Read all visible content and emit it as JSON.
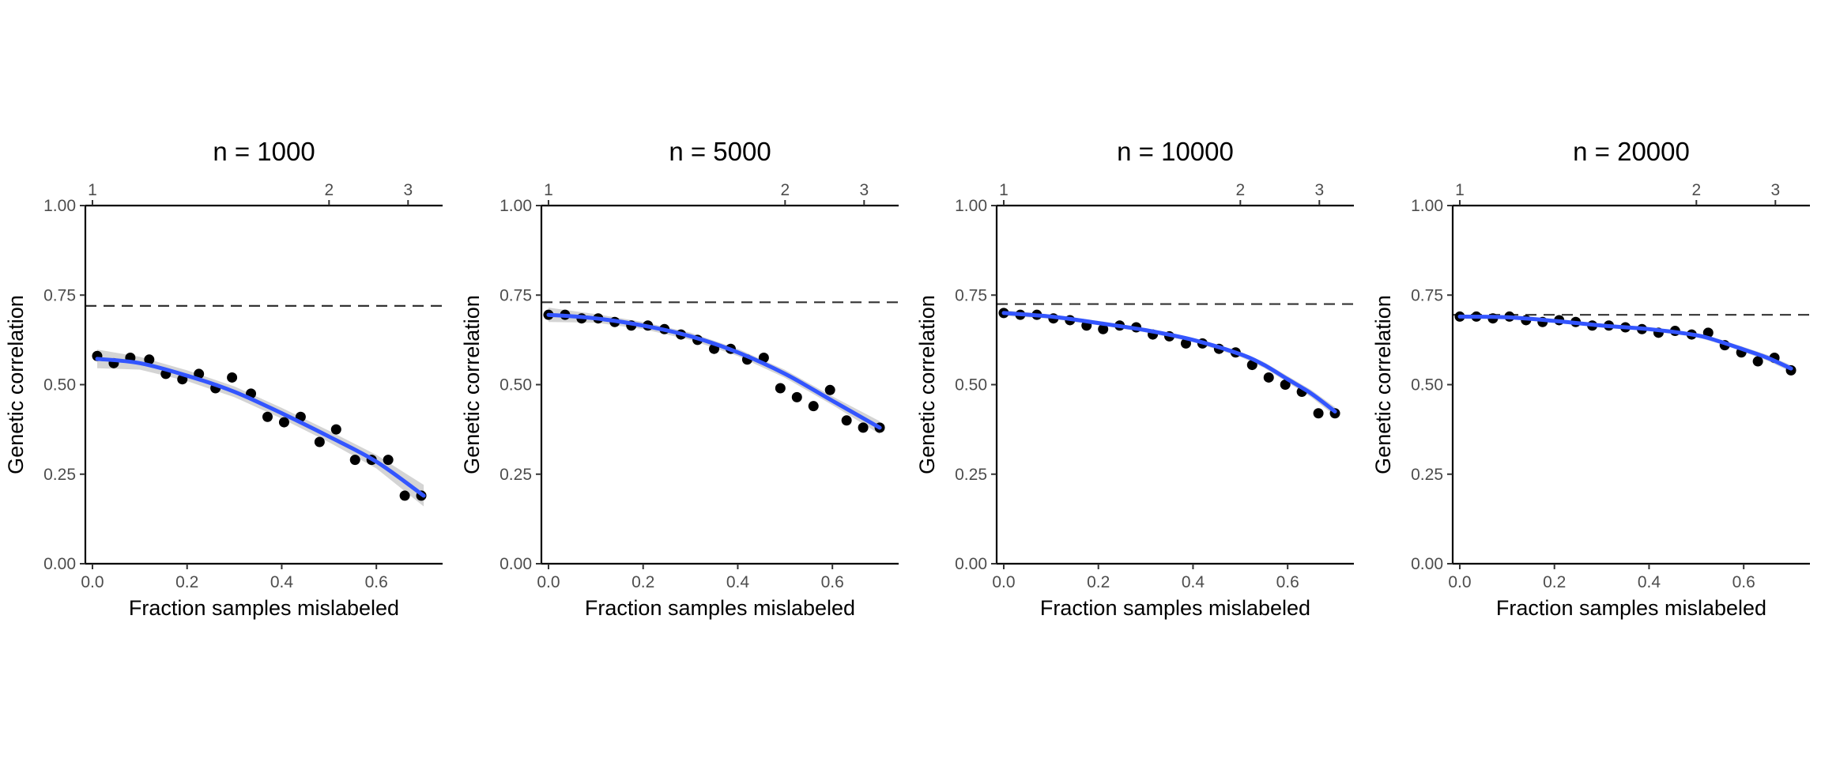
{
  "figure": {
    "colors": {
      "point": "#000000",
      "fit_line": "#3355ff",
      "confidence_band": "#cccccc",
      "reference_line": "#333333"
    }
  },
  "chart_data": [
    {
      "type": "scatter",
      "title": "n = 1000",
      "xlabel": "Fraction samples mislabeled",
      "ylabel": "Genetic correlation",
      "xlim": [
        -0.015,
        0.74
      ],
      "ylim": [
        0,
        1
      ],
      "x_ticks": [
        0.0,
        0.2,
        0.4,
        0.6
      ],
      "x_tick_labels": [
        "0.0",
        "0.2",
        "0.4",
        "0.6"
      ],
      "y_ticks": [
        0,
        0.25,
        0.5,
        0.75,
        1
      ],
      "y_tick_labels": [
        "0.00",
        "0.25",
        "0.50",
        "0.75",
        "1.00"
      ],
      "top_axis_ticks": [
        0.0,
        0.5,
        0.667
      ],
      "top_axis_tick_labels": [
        "1",
        "2",
        "3"
      ],
      "reference_y": 0.72,
      "points": {
        "x": [
          0.01,
          0.045,
          0.08,
          0.12,
          0.155,
          0.19,
          0.225,
          0.26,
          0.295,
          0.335,
          0.37,
          0.405,
          0.44,
          0.48,
          0.515,
          0.555,
          0.59,
          0.625,
          0.66,
          0.695
        ],
        "y": [
          0.58,
          0.56,
          0.575,
          0.57,
          0.53,
          0.515,
          0.53,
          0.49,
          0.52,
          0.475,
          0.41,
          0.395,
          0.41,
          0.34,
          0.375,
          0.29,
          0.29,
          0.29,
          0.19,
          0.19
        ]
      },
      "fit": {
        "x": [
          0.01,
          0.1,
          0.2,
          0.3,
          0.4,
          0.5,
          0.6,
          0.7
        ],
        "y": [
          0.572,
          0.56,
          0.525,
          0.48,
          0.42,
          0.355,
          0.285,
          0.19
        ],
        "ci_halfwidth": [
          0.026,
          0.018,
          0.015,
          0.015,
          0.015,
          0.016,
          0.019,
          0.03
        ]
      }
    },
    {
      "type": "scatter",
      "title": "n = 5000",
      "xlabel": "Fraction samples mislabeled",
      "ylabel": "Genetic correlation",
      "xlim": [
        -0.015,
        0.74
      ],
      "ylim": [
        0,
        1
      ],
      "x_ticks": [
        0.0,
        0.2,
        0.4,
        0.6
      ],
      "x_tick_labels": [
        "0.0",
        "0.2",
        "0.4",
        "0.6"
      ],
      "y_ticks": [
        0,
        0.25,
        0.5,
        0.75,
        1
      ],
      "y_tick_labels": [
        "0.00",
        "0.25",
        "0.50",
        "0.75",
        "1.00"
      ],
      "top_axis_ticks": [
        0.0,
        0.5,
        0.667
      ],
      "top_axis_tick_labels": [
        "1",
        "2",
        "3"
      ],
      "reference_y": 0.73,
      "points": {
        "x": [
          0.0,
          0.035,
          0.07,
          0.105,
          0.14,
          0.175,
          0.21,
          0.245,
          0.28,
          0.315,
          0.35,
          0.385,
          0.42,
          0.455,
          0.49,
          0.525,
          0.56,
          0.595,
          0.63,
          0.665,
          0.7
        ],
        "y": [
          0.695,
          0.695,
          0.685,
          0.685,
          0.675,
          0.665,
          0.665,
          0.655,
          0.64,
          0.625,
          0.6,
          0.6,
          0.57,
          0.575,
          0.49,
          0.465,
          0.44,
          0.485,
          0.4,
          0.38,
          0.38
        ]
      },
      "fit": {
        "x": [
          0.0,
          0.1,
          0.2,
          0.3,
          0.4,
          0.5,
          0.6,
          0.7
        ],
        "y": [
          0.695,
          0.685,
          0.665,
          0.635,
          0.59,
          0.53,
          0.455,
          0.38
        ],
        "ci_halfwidth": [
          0.02,
          0.012,
          0.01,
          0.01,
          0.01,
          0.011,
          0.012,
          0.018
        ]
      }
    },
    {
      "type": "scatter",
      "title": "n = 10000",
      "xlabel": "Fraction samples mislabeled",
      "ylabel": "Genetic correlation",
      "xlim": [
        -0.015,
        0.74
      ],
      "ylim": [
        0,
        1
      ],
      "x_ticks": [
        0.0,
        0.2,
        0.4,
        0.6
      ],
      "x_tick_labels": [
        "0.0",
        "0.2",
        "0.4",
        "0.6"
      ],
      "y_ticks": [
        0,
        0.25,
        0.5,
        0.75,
        1
      ],
      "y_tick_labels": [
        "0.00",
        "0.25",
        "0.50",
        "0.75",
        "1.00"
      ],
      "top_axis_ticks": [
        0.0,
        0.5,
        0.667
      ],
      "top_axis_tick_labels": [
        "1",
        "2",
        "3"
      ],
      "reference_y": 0.725,
      "points": {
        "x": [
          0.0,
          0.035,
          0.07,
          0.105,
          0.14,
          0.175,
          0.21,
          0.245,
          0.28,
          0.315,
          0.35,
          0.385,
          0.42,
          0.455,
          0.49,
          0.525,
          0.56,
          0.595,
          0.63,
          0.665,
          0.7
        ],
        "y": [
          0.7,
          0.695,
          0.695,
          0.685,
          0.68,
          0.665,
          0.655,
          0.665,
          0.66,
          0.64,
          0.635,
          0.615,
          0.615,
          0.6,
          0.59,
          0.555,
          0.52,
          0.5,
          0.48,
          0.42,
          0.42
        ]
      },
      "fit": {
        "x": [
          0.0,
          0.1,
          0.2,
          0.3,
          0.4,
          0.5,
          0.55,
          0.6,
          0.65,
          0.7
        ],
        "y": [
          0.7,
          0.69,
          0.672,
          0.652,
          0.625,
          0.585,
          0.555,
          0.515,
          0.475,
          0.425
        ],
        "ci_halfwidth": [
          0.008,
          0.006,
          0.006,
          0.006,
          0.006,
          0.007,
          0.008,
          0.009,
          0.01,
          0.012
        ]
      }
    },
    {
      "type": "scatter",
      "title": "n = 20000",
      "xlabel": "Fraction samples mislabeled",
      "ylabel": "Genetic correlation",
      "xlim": [
        -0.015,
        0.74
      ],
      "ylim": [
        0,
        1
      ],
      "x_ticks": [
        0.0,
        0.2,
        0.4,
        0.6
      ],
      "x_tick_labels": [
        "0.0",
        "0.2",
        "0.4",
        "0.6"
      ],
      "y_ticks": [
        0,
        0.25,
        0.5,
        0.75,
        1
      ],
      "y_tick_labels": [
        "0.00",
        "0.25",
        "0.50",
        "0.75",
        "1.00"
      ],
      "top_axis_ticks": [
        0.0,
        0.5,
        0.667
      ],
      "top_axis_tick_labels": [
        "1",
        "2",
        "3"
      ],
      "reference_y": 0.695,
      "points": {
        "x": [
          0.0,
          0.035,
          0.07,
          0.105,
          0.14,
          0.175,
          0.21,
          0.245,
          0.28,
          0.315,
          0.35,
          0.385,
          0.42,
          0.455,
          0.49,
          0.525,
          0.56,
          0.595,
          0.63,
          0.665,
          0.7
        ],
        "y": [
          0.69,
          0.69,
          0.685,
          0.69,
          0.68,
          0.675,
          0.68,
          0.675,
          0.665,
          0.665,
          0.66,
          0.655,
          0.645,
          0.65,
          0.64,
          0.645,
          0.61,
          0.59,
          0.565,
          0.575,
          0.54
        ]
      },
      "fit": {
        "x": [
          0.0,
          0.1,
          0.2,
          0.3,
          0.4,
          0.5,
          0.55,
          0.6,
          0.65,
          0.7
        ],
        "y": [
          0.69,
          0.688,
          0.678,
          0.665,
          0.655,
          0.638,
          0.62,
          0.598,
          0.575,
          0.545
        ],
        "ci_halfwidth": [
          0.006,
          0.005,
          0.005,
          0.005,
          0.005,
          0.005,
          0.006,
          0.007,
          0.008,
          0.009
        ]
      }
    }
  ]
}
